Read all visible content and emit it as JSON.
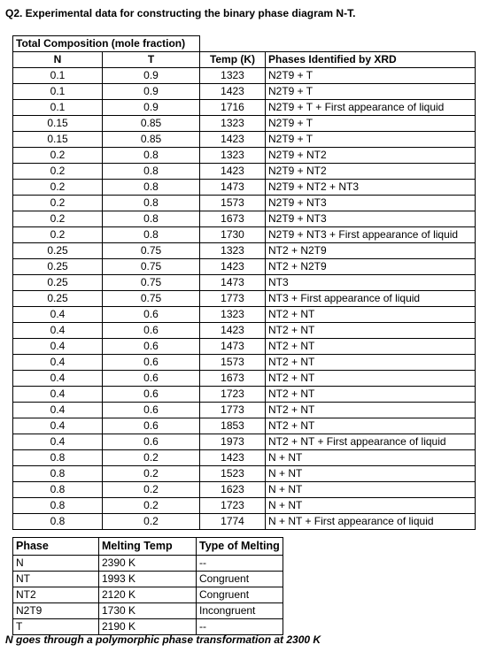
{
  "title": "Q2. Experimental data for constructing the binary phase diagram N-T.",
  "table1": {
    "group_header": "Total Composition (mole fraction)",
    "col_n": "N",
    "col_t": "T",
    "col_temp": "Temp (K)",
    "col_phases": "Phases Identified by XRD",
    "rows": [
      [
        "0.1",
        "0.9",
        "1323",
        "N2T9 + T"
      ],
      [
        "0.1",
        "0.9",
        "1423",
        "N2T9 + T"
      ],
      [
        "0.1",
        "0.9",
        "1716",
        "N2T9 + T + First appearance of liquid"
      ],
      [
        "0.15",
        "0.85",
        "1323",
        "N2T9 + T"
      ],
      [
        "0.15",
        "0.85",
        "1423",
        "N2T9 + T"
      ],
      [
        "0.2",
        "0.8",
        "1323",
        "N2T9 + NT2"
      ],
      [
        "0.2",
        "0.8",
        "1423",
        "N2T9 + NT2"
      ],
      [
        "0.2",
        "0.8",
        "1473",
        "N2T9 + NT2 + NT3"
      ],
      [
        "0.2",
        "0.8",
        "1573",
        "N2T9 + NT3"
      ],
      [
        "0.2",
        "0.8",
        "1673",
        "N2T9 + NT3"
      ],
      [
        "0.2",
        "0.8",
        "1730",
        "N2T9 + NT3 + First appearance of liquid"
      ],
      [
        "0.25",
        "0.75",
        "1323",
        "NT2 + N2T9"
      ],
      [
        "0.25",
        "0.75",
        "1423",
        "NT2 + N2T9"
      ],
      [
        "0.25",
        "0.75",
        "1473",
        "NT3"
      ],
      [
        "0.25",
        "0.75",
        "1773",
        "NT3 + First appearance of liquid"
      ],
      [
        "0.4",
        "0.6",
        "1323",
        "NT2 + NT"
      ],
      [
        "0.4",
        "0.6",
        "1423",
        "NT2 + NT"
      ],
      [
        "0.4",
        "0.6",
        "1473",
        "NT2 + NT"
      ],
      [
        "0.4",
        "0.6",
        "1573",
        "NT2 + NT"
      ],
      [
        "0.4",
        "0.6",
        "1673",
        "NT2 + NT"
      ],
      [
        "0.4",
        "0.6",
        "1723",
        "NT2 + NT"
      ],
      [
        "0.4",
        "0.6",
        "1773",
        "NT2 + NT"
      ],
      [
        "0.4",
        "0.6",
        "1853",
        "NT2 + NT"
      ],
      [
        "0.4",
        "0.6",
        "1973",
        "NT2 + NT + First appearance of liquid"
      ],
      [
        "0.8",
        "0.2",
        "1423",
        "N + NT"
      ],
      [
        "0.8",
        "0.2",
        "1523",
        "N + NT"
      ],
      [
        "0.8",
        "0.2",
        "1623",
        "N + NT"
      ],
      [
        "0.8",
        "0.2",
        "1723",
        "N + NT"
      ],
      [
        "0.8",
        "0.2",
        "1774",
        "N + NT + First appearance of liquid"
      ]
    ]
  },
  "table2": {
    "col_phase": "Phase",
    "col_melting": "Melting Temp",
    "col_type": "Type of Melting",
    "rows": [
      [
        "N",
        "2390 K",
        "--"
      ],
      [
        "NT",
        "1993 K",
        "Congruent"
      ],
      [
        "NT2",
        "2120 K",
        "Congruent"
      ],
      [
        "N2T9",
        "1730 K",
        "Incongruent"
      ],
      [
        "T",
        "2190 K",
        "--"
      ]
    ]
  },
  "note": "N goes through a polymorphic phase transformation at 2300 K"
}
